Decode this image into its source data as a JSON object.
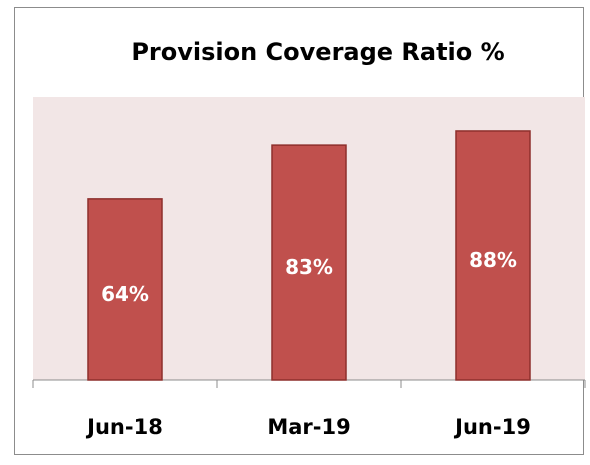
{
  "chart_data": {
    "type": "bar",
    "title": "Provision Coverage Ratio %",
    "categories": [
      "Jun-18",
      "Mar-19",
      "Jun-19"
    ],
    "values": [
      64,
      83,
      88
    ],
    "value_labels": [
      "64%",
      "83%",
      "88%"
    ],
    "color": "#c0504d",
    "ylim": [
      0,
      100
    ]
  }
}
